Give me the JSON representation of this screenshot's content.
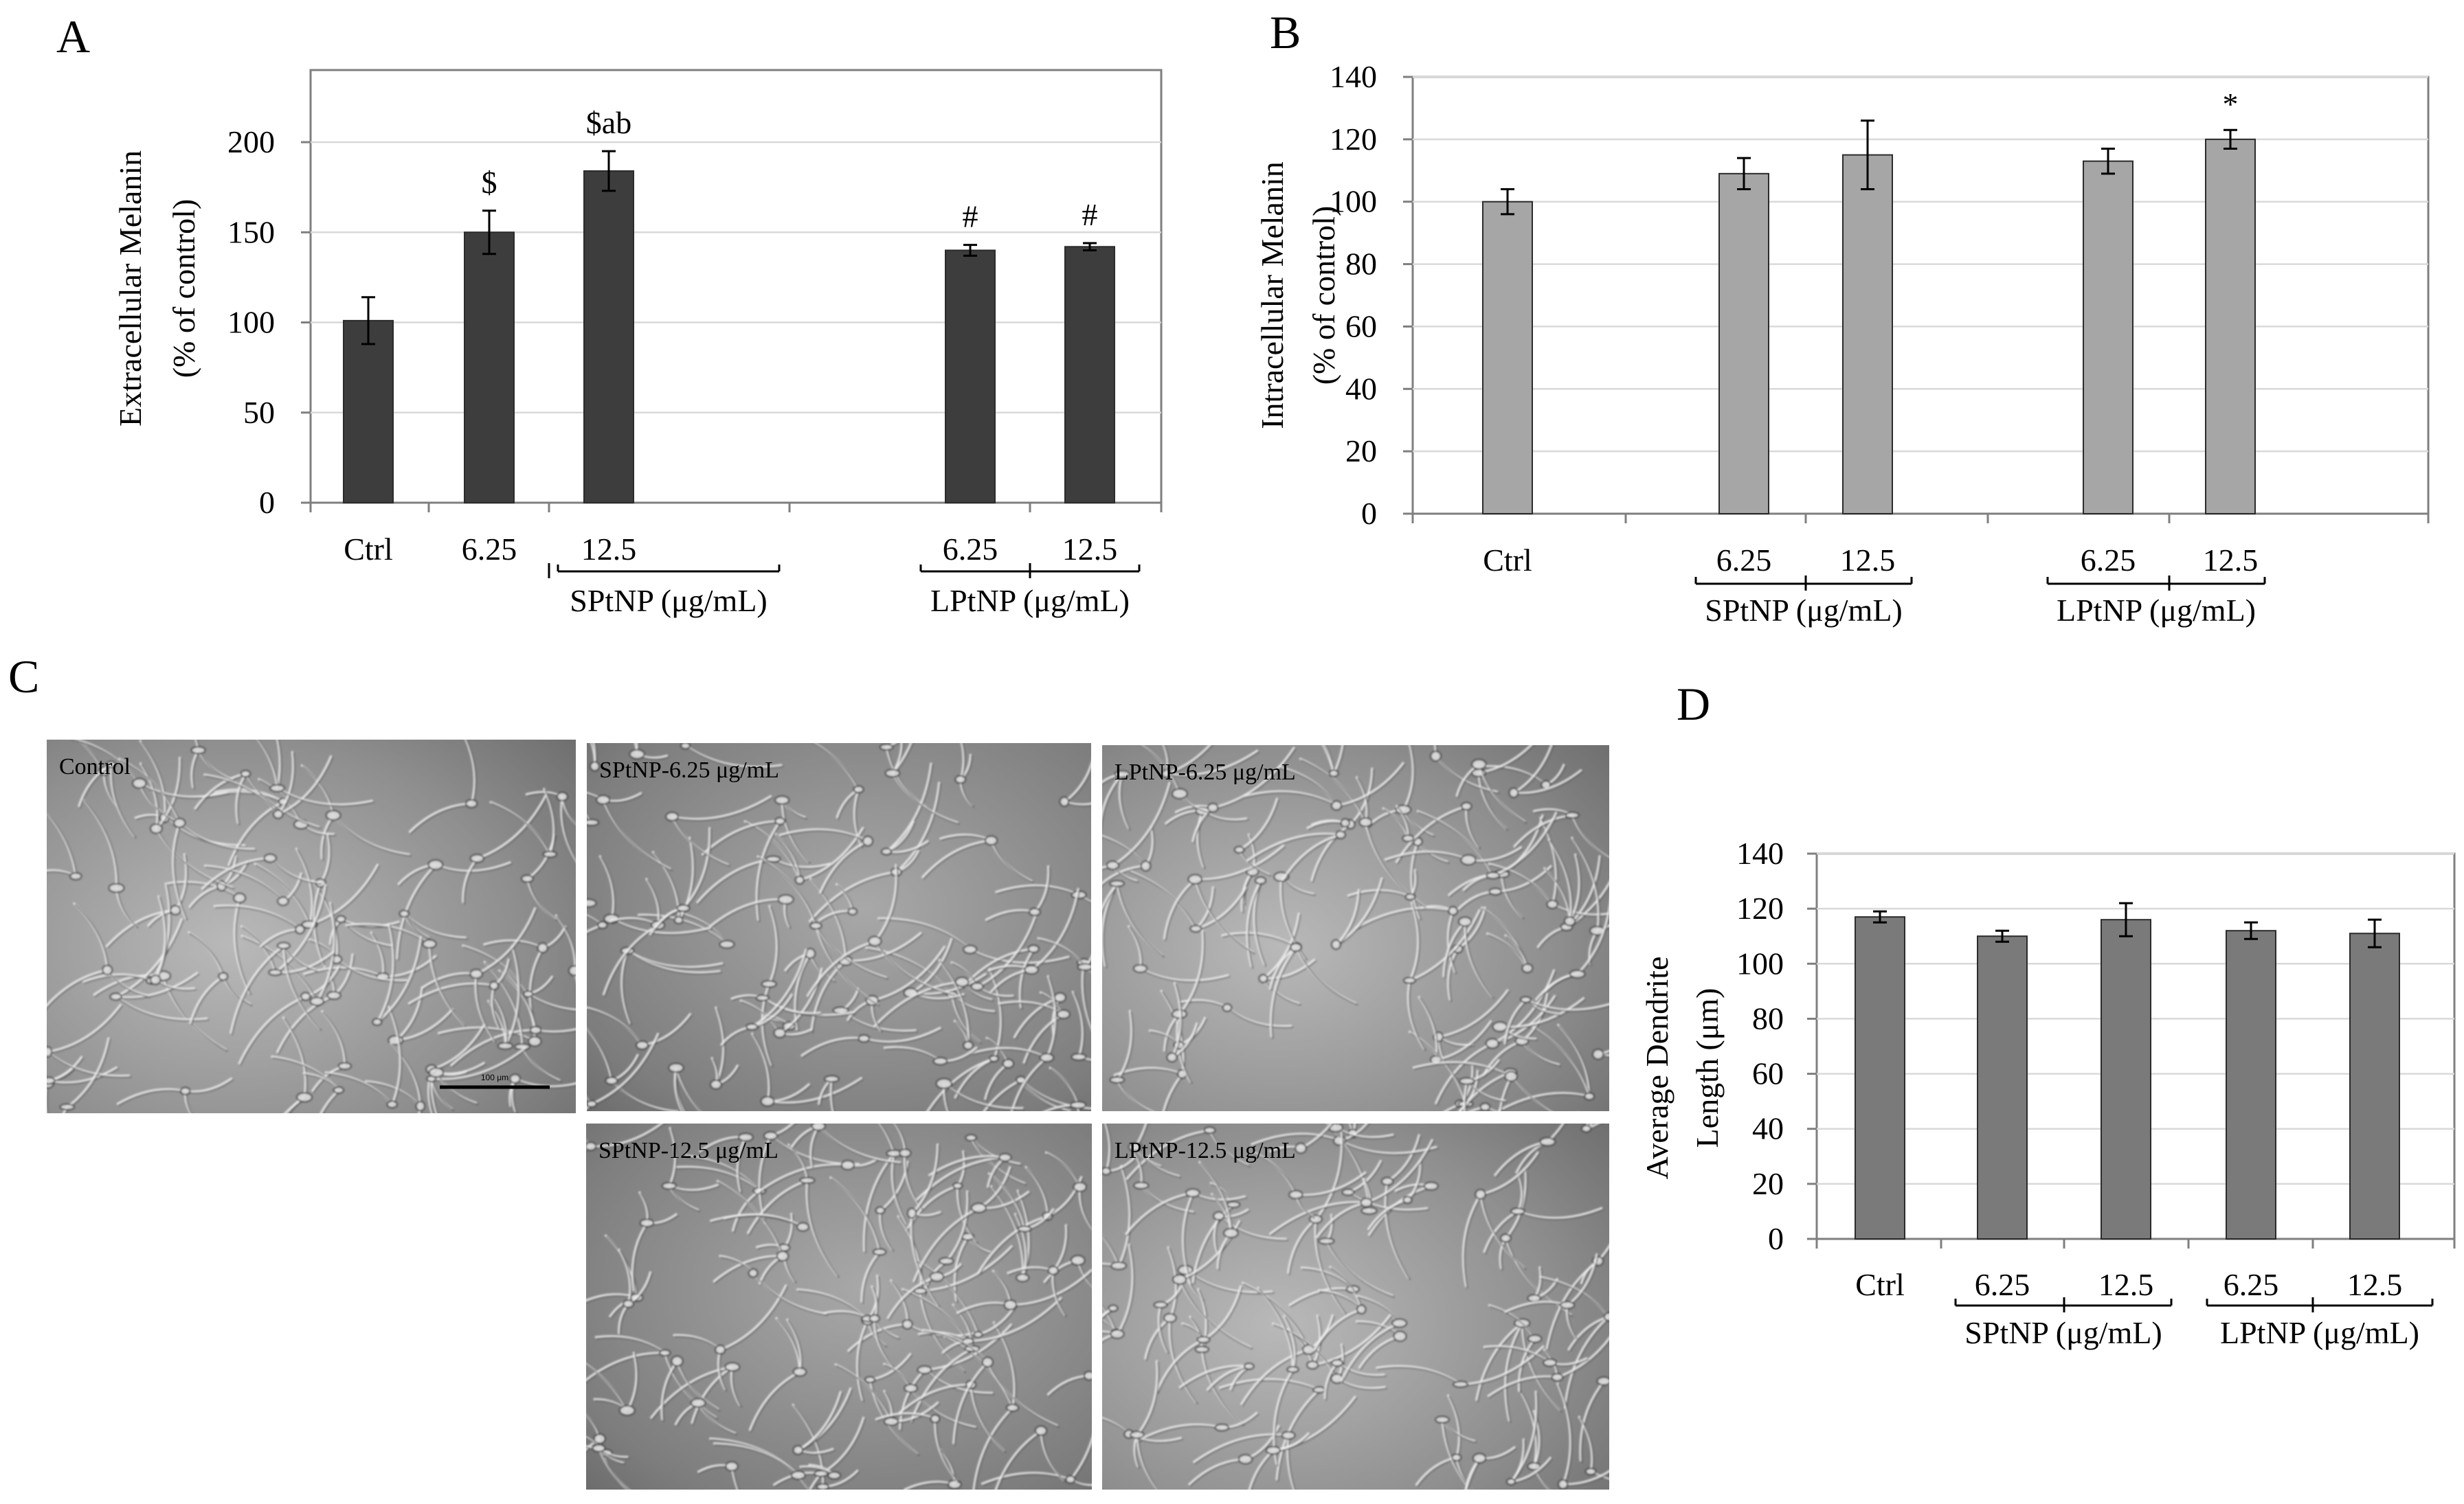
{
  "panels": {
    "A": "A",
    "B": "B",
    "C": "C",
    "D": "D"
  },
  "chart_data": [
    {
      "id": "A",
      "type": "bar",
      "ylabel_line1": "Extracellular Melanin",
      "ylabel_line2": "(% of control)",
      "ylim": [
        0,
        240
      ],
      "yticks": [
        0,
        50,
        100,
        150,
        200
      ],
      "grid": true,
      "bar_color": "#3d3d3d",
      "bars": [
        {
          "label": "Ctrl",
          "value": 101,
          "error": 13,
          "annotation": ""
        },
        {
          "label": "6.25",
          "value": 150,
          "error": 12,
          "annotation": "$"
        },
        {
          "label": "12.5",
          "value": 184,
          "error": 11,
          "annotation": "$ab"
        },
        {
          "label": "6.25",
          "value": 140,
          "error": 3,
          "annotation": "#"
        },
        {
          "label": "12.5",
          "value": 142,
          "error": 2,
          "annotation": "#"
        }
      ],
      "groups": [
        "SPtNP (μg/mL)",
        "LPtNP (μg/mL)"
      ]
    },
    {
      "id": "B",
      "type": "bar",
      "ylabel_line1": "Intracellular Melanin",
      "ylabel_line2": "(% of control)",
      "ylim": [
        0,
        140
      ],
      "yticks": [
        0,
        20,
        40,
        60,
        80,
        100,
        120,
        140
      ],
      "grid": true,
      "bar_color": "#a6a6a6",
      "bars": [
        {
          "label": "Ctrl",
          "value": 100,
          "error": 4,
          "annotation": ""
        },
        {
          "label": "6.25",
          "value": 109,
          "error": 5,
          "annotation": ""
        },
        {
          "label": "12.5",
          "value": 115,
          "error": 11,
          "annotation": ""
        },
        {
          "label": "6.25",
          "value": 113,
          "error": 4,
          "annotation": ""
        },
        {
          "label": "12.5",
          "value": 120,
          "error": 3,
          "annotation": "*"
        }
      ],
      "groups": [
        "SPtNP (μg/mL)",
        "LPtNP (μg/mL)"
      ]
    },
    {
      "id": "D",
      "type": "bar",
      "ylabel_line1": "Average Dendrite",
      "ylabel_line2": "Length (μm)",
      "ylim": [
        0,
        140
      ],
      "yticks": [
        0,
        20,
        40,
        60,
        80,
        100,
        120,
        140
      ],
      "grid": true,
      "bar_color": "#7a7a7a",
      "bars": [
        {
          "label": "Ctrl",
          "value": 117,
          "error": 2,
          "annotation": ""
        },
        {
          "label": "6.25",
          "value": 110,
          "error": 2,
          "annotation": ""
        },
        {
          "label": "12.5",
          "value": 116,
          "error": 6,
          "annotation": ""
        },
        {
          "label": "6.25",
          "value": 112,
          "error": 3,
          "annotation": ""
        },
        {
          "label": "12.5",
          "value": 111,
          "error": 5,
          "annotation": ""
        }
      ],
      "groups": [
        "SPtNP (μg/mL)",
        "LPtNP (μg/mL)"
      ]
    }
  ],
  "micrographs": [
    {
      "label": "Control",
      "scale": "100 μm"
    },
    {
      "label": "SPtNP-6.25 μg/mL"
    },
    {
      "label": "LPtNP-6.25 μg/mL"
    },
    {
      "label": "SPtNP-12.5 μg/mL"
    },
    {
      "label": "LPtNP-12.5 μg/mL"
    }
  ]
}
